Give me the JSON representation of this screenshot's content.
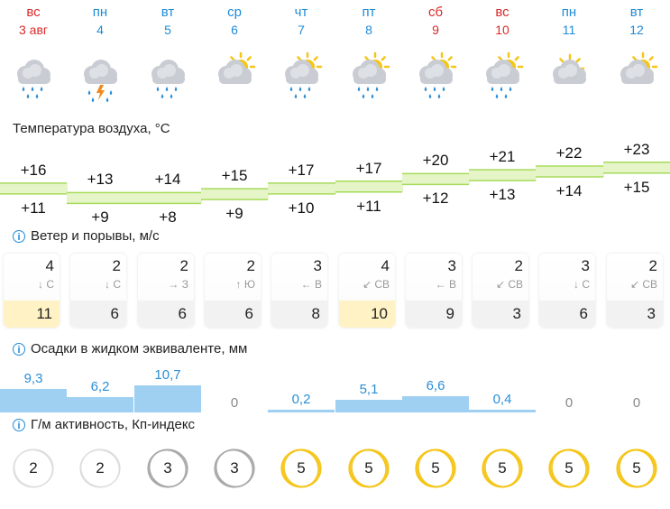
{
  "days": [
    {
      "dow": "вс",
      "date": "3 авг",
      "weekend": true,
      "icon": "rain-cloud-icon"
    },
    {
      "dow": "пн",
      "date": "4",
      "weekend": false,
      "icon": "thunderstorm-cloud-icon"
    },
    {
      "dow": "вт",
      "date": "5",
      "weekend": false,
      "icon": "rain-cloud-icon"
    },
    {
      "dow": "ср",
      "date": "6",
      "weekend": false,
      "icon": "partly-cloudy-icon"
    },
    {
      "dow": "чт",
      "date": "7",
      "weekend": false,
      "icon": "sun-cloud-rain-icon"
    },
    {
      "dow": "пт",
      "date": "8",
      "weekend": false,
      "icon": "sun-cloud-rain-icon"
    },
    {
      "dow": "сб",
      "date": "9",
      "weekend": true,
      "icon": "sun-cloud-rain-icon"
    },
    {
      "dow": "вс",
      "date": "10",
      "weekend": true,
      "icon": "sun-cloud-rain-icon"
    },
    {
      "dow": "пн",
      "date": "11",
      "weekend": false,
      "icon": "sun-behind-cloud-icon"
    },
    {
      "dow": "вт",
      "date": "12",
      "weekend": false,
      "icon": "partly-cloudy-icon"
    }
  ],
  "temperature": {
    "title": "Температура воздуха, °C",
    "max": [
      "+16",
      "+13",
      "+14",
      "+15",
      "+17",
      "+17",
      "+20",
      "+21",
      "+22",
      "+23"
    ],
    "min": [
      "+11",
      "+9",
      "+8",
      "+9",
      "+10",
      "+11",
      "+12",
      "+13",
      "+14",
      "+15"
    ]
  },
  "wind": {
    "title": "Ветер и порывы, м/с",
    "speed": [
      "4",
      "2",
      "2",
      "2",
      "3",
      "4",
      "3",
      "2",
      "3",
      "2"
    ],
    "dir": [
      "↓ С",
      "↓ С",
      "→ З",
      "↑ Ю",
      "← В",
      "↙ СВ",
      "← В",
      "↙ СВ",
      "↓ С",
      "↙ СВ"
    ],
    "gust": [
      "11",
      "6",
      "6",
      "6",
      "8",
      "10",
      "9",
      "3",
      "6",
      "3"
    ],
    "gust_high": [
      true,
      false,
      false,
      false,
      false,
      true,
      false,
      false,
      false,
      false
    ]
  },
  "precip": {
    "title": "Осадки в жидком эквиваленте, мм",
    "values": [
      "9,3",
      "6,2",
      "10,7",
      "0",
      "0,2",
      "5,1",
      "6,6",
      "0,4",
      "0",
      "0"
    ],
    "amounts": [
      9.3,
      6.2,
      10.7,
      0,
      0.2,
      5.1,
      6.6,
      0.4,
      0,
      0
    ]
  },
  "gm": {
    "title": "Г/м активность, Кп-индекс",
    "values": [
      "2",
      "2",
      "3",
      "3",
      "5",
      "5",
      "5",
      "5",
      "5",
      "5"
    ]
  },
  "colors": {
    "accent": "#1f8bd8",
    "weekend": "#d92b2b",
    "warm": "#f5c518",
    "temp_band": "#e6f5c8",
    "precip": "#9fd0f2"
  }
}
